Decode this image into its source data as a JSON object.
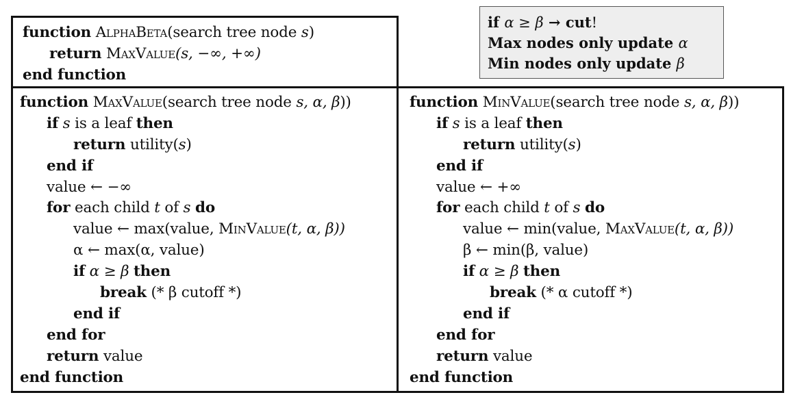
{
  "note": {
    "line1": {
      "kw_if": "if",
      "cond": "α  ≥  β",
      "arrow": "→",
      "cut": "cut",
      "bang": "!"
    },
    "line2": {
      "text": "Max nodes only update",
      "var": "α"
    },
    "line3": {
      "text": "Min nodes only update",
      "var": "β"
    }
  },
  "alphabeta": {
    "l1": {
      "kw": "function",
      "name": "AlphaBeta",
      "args": "(search tree node",
      "var": "s",
      "close": ")"
    },
    "l2": {
      "kw": "return",
      "name": "MaxValue",
      "args": "(s, −∞, +∞)"
    },
    "l3": {
      "kw": "end function"
    }
  },
  "maxvalue": {
    "l1": {
      "kw": "function",
      "name": "MaxValue",
      "args_pre": "(search tree node",
      "args_vars": "s, α, β",
      "close": "))"
    },
    "l2": {
      "kw_if": "if",
      "var": "s",
      "text": "is a leaf",
      "kw_then": "then"
    },
    "l3": {
      "kw": "return",
      "text": "utility(",
      "var": "s",
      "close": ")"
    },
    "l4": {
      "kw": "end if"
    },
    "l5": {
      "text": "value ← −∞"
    },
    "l6": {
      "kw_for": "for",
      "text1": "each child",
      "var_t": "t",
      "text2": "of",
      "var_s": "s",
      "kw_do": "do"
    },
    "l7": {
      "text": "value ← max(value,",
      "name": "MinValue",
      "args": "(t, α, β))"
    },
    "l8": {
      "text": "α ← max(α, value)"
    },
    "l9": {
      "kw_if": "if",
      "cond": "α ≥ β",
      "kw_then": "then"
    },
    "l10": {
      "kw": "break",
      "text": "(* β cutoff *)"
    },
    "l11": {
      "kw": "end if"
    },
    "l12": {
      "kw": "end for"
    },
    "l13": {
      "kw": "return",
      "text": "value"
    },
    "l14": {
      "kw": "end function"
    }
  },
  "minvalue": {
    "l1": {
      "kw": "function",
      "name": "MinValue",
      "args_pre": "(search tree node",
      "args_vars": "s, α, β",
      "close": "))"
    },
    "l2": {
      "kw_if": "if",
      "var": "s",
      "text": "is a leaf",
      "kw_then": "then"
    },
    "l3": {
      "kw": "return",
      "text": "utility(",
      "var": "s",
      "close": ")"
    },
    "l4": {
      "kw": "end if"
    },
    "l5": {
      "text": "value ← +∞"
    },
    "l6": {
      "kw_for": "for",
      "text1": "each child",
      "var_t": "t",
      "text2": "of",
      "var_s": "s",
      "kw_do": "do"
    },
    "l7": {
      "text": "value ← min(value,",
      "name": "MaxValue",
      "args": "(t, α, β))"
    },
    "l8": {
      "text": "β ← min(β, value)"
    },
    "l9": {
      "kw_if": "if",
      "cond": "α ≥ β",
      "kw_then": "then"
    },
    "l10": {
      "kw": "break",
      "text": "(* α cutoff *)"
    },
    "l11": {
      "kw": "end if"
    },
    "l12": {
      "kw": "end for"
    },
    "l13": {
      "kw": "return",
      "text": "value"
    },
    "l14": {
      "kw": "end function"
    }
  }
}
